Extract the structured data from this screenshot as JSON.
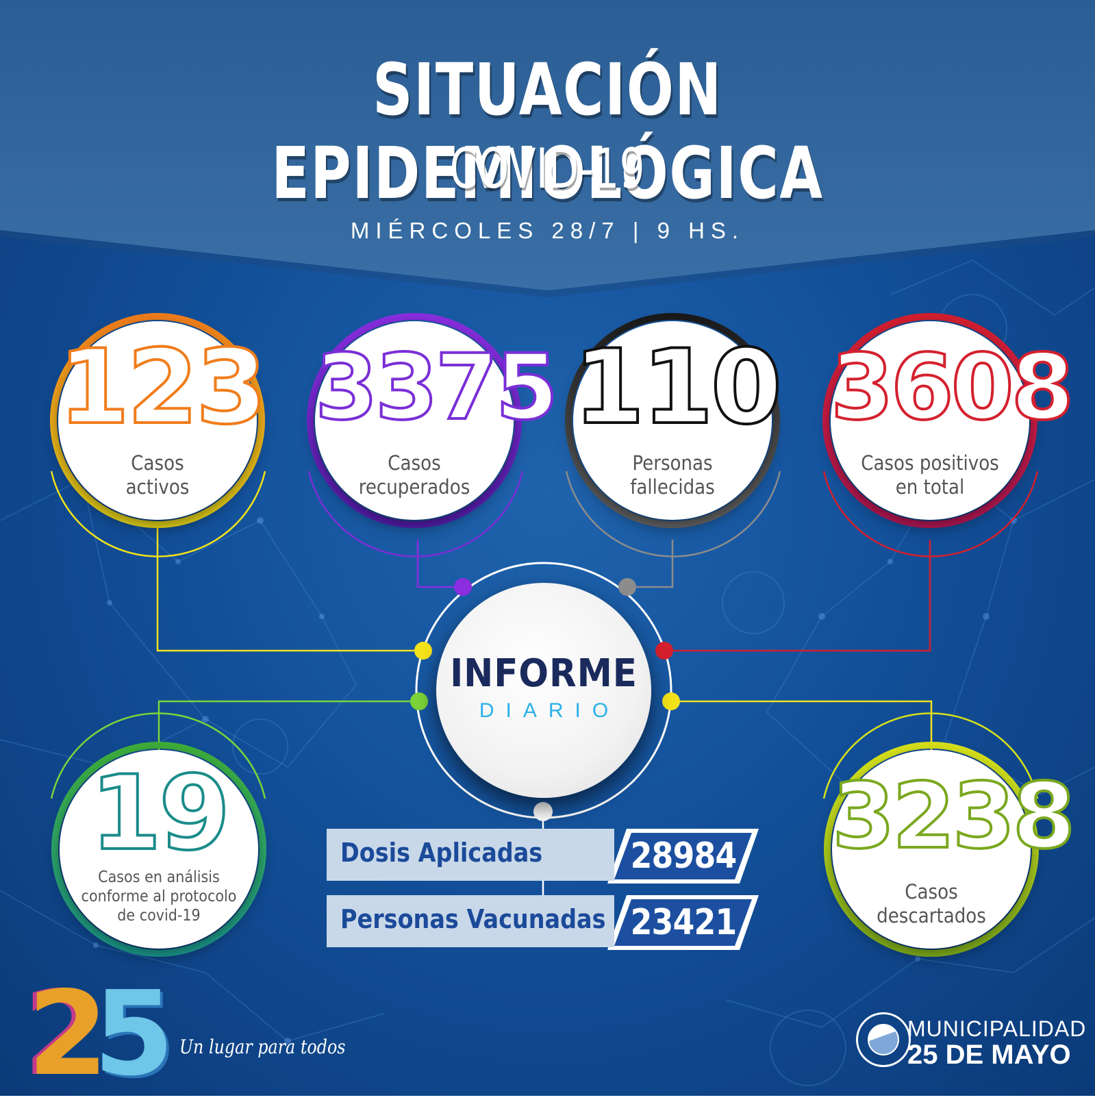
{
  "header": {
    "title": "SITUACIÓN EPIDEMIOLÓGICA",
    "subtitle": "COVID-19",
    "date": "MIÉRCOLES 28/7 | 9 HS."
  },
  "stats": {
    "active": {
      "value": "123",
      "label_line1": "Casos",
      "label_line2": "activos",
      "color": "#f07d1c"
    },
    "recovered": {
      "value": "3375",
      "label_line1": "Casos",
      "label_line2": "recuperados",
      "color": "#7a2fd6"
    },
    "deceased": {
      "value": "110",
      "label_line1": "Personas",
      "label_line2": "fallecidas",
      "color": "#111111"
    },
    "total_positive": {
      "value": "3608",
      "label_line1": "Casos positivos",
      "label_line2": "en total",
      "color": "#d4212f"
    },
    "in_analysis": {
      "value": "19",
      "label_line1": "Casos en análisis",
      "label_line2": "conforme al protocolo",
      "label_line3": "de covid-19",
      "color": "#1a8c8a"
    },
    "discarded": {
      "value": "3238",
      "label_line1": "Casos",
      "label_line2": "descartados",
      "color": "#7aa81e"
    }
  },
  "center": {
    "line1": "INFORME",
    "line2": "DIARIO"
  },
  "vaccination": {
    "doses_label": "Dosis Aplicadas",
    "doses_value": "28984",
    "people_label": "Personas Vacunadas",
    "people_value": "23421"
  },
  "footer": {
    "logo_number": "25",
    "tagline": "Un lugar para todos",
    "municipality_line1": "MUNICIPALIDAD",
    "municipality_line2": "25 DE MAYO"
  }
}
